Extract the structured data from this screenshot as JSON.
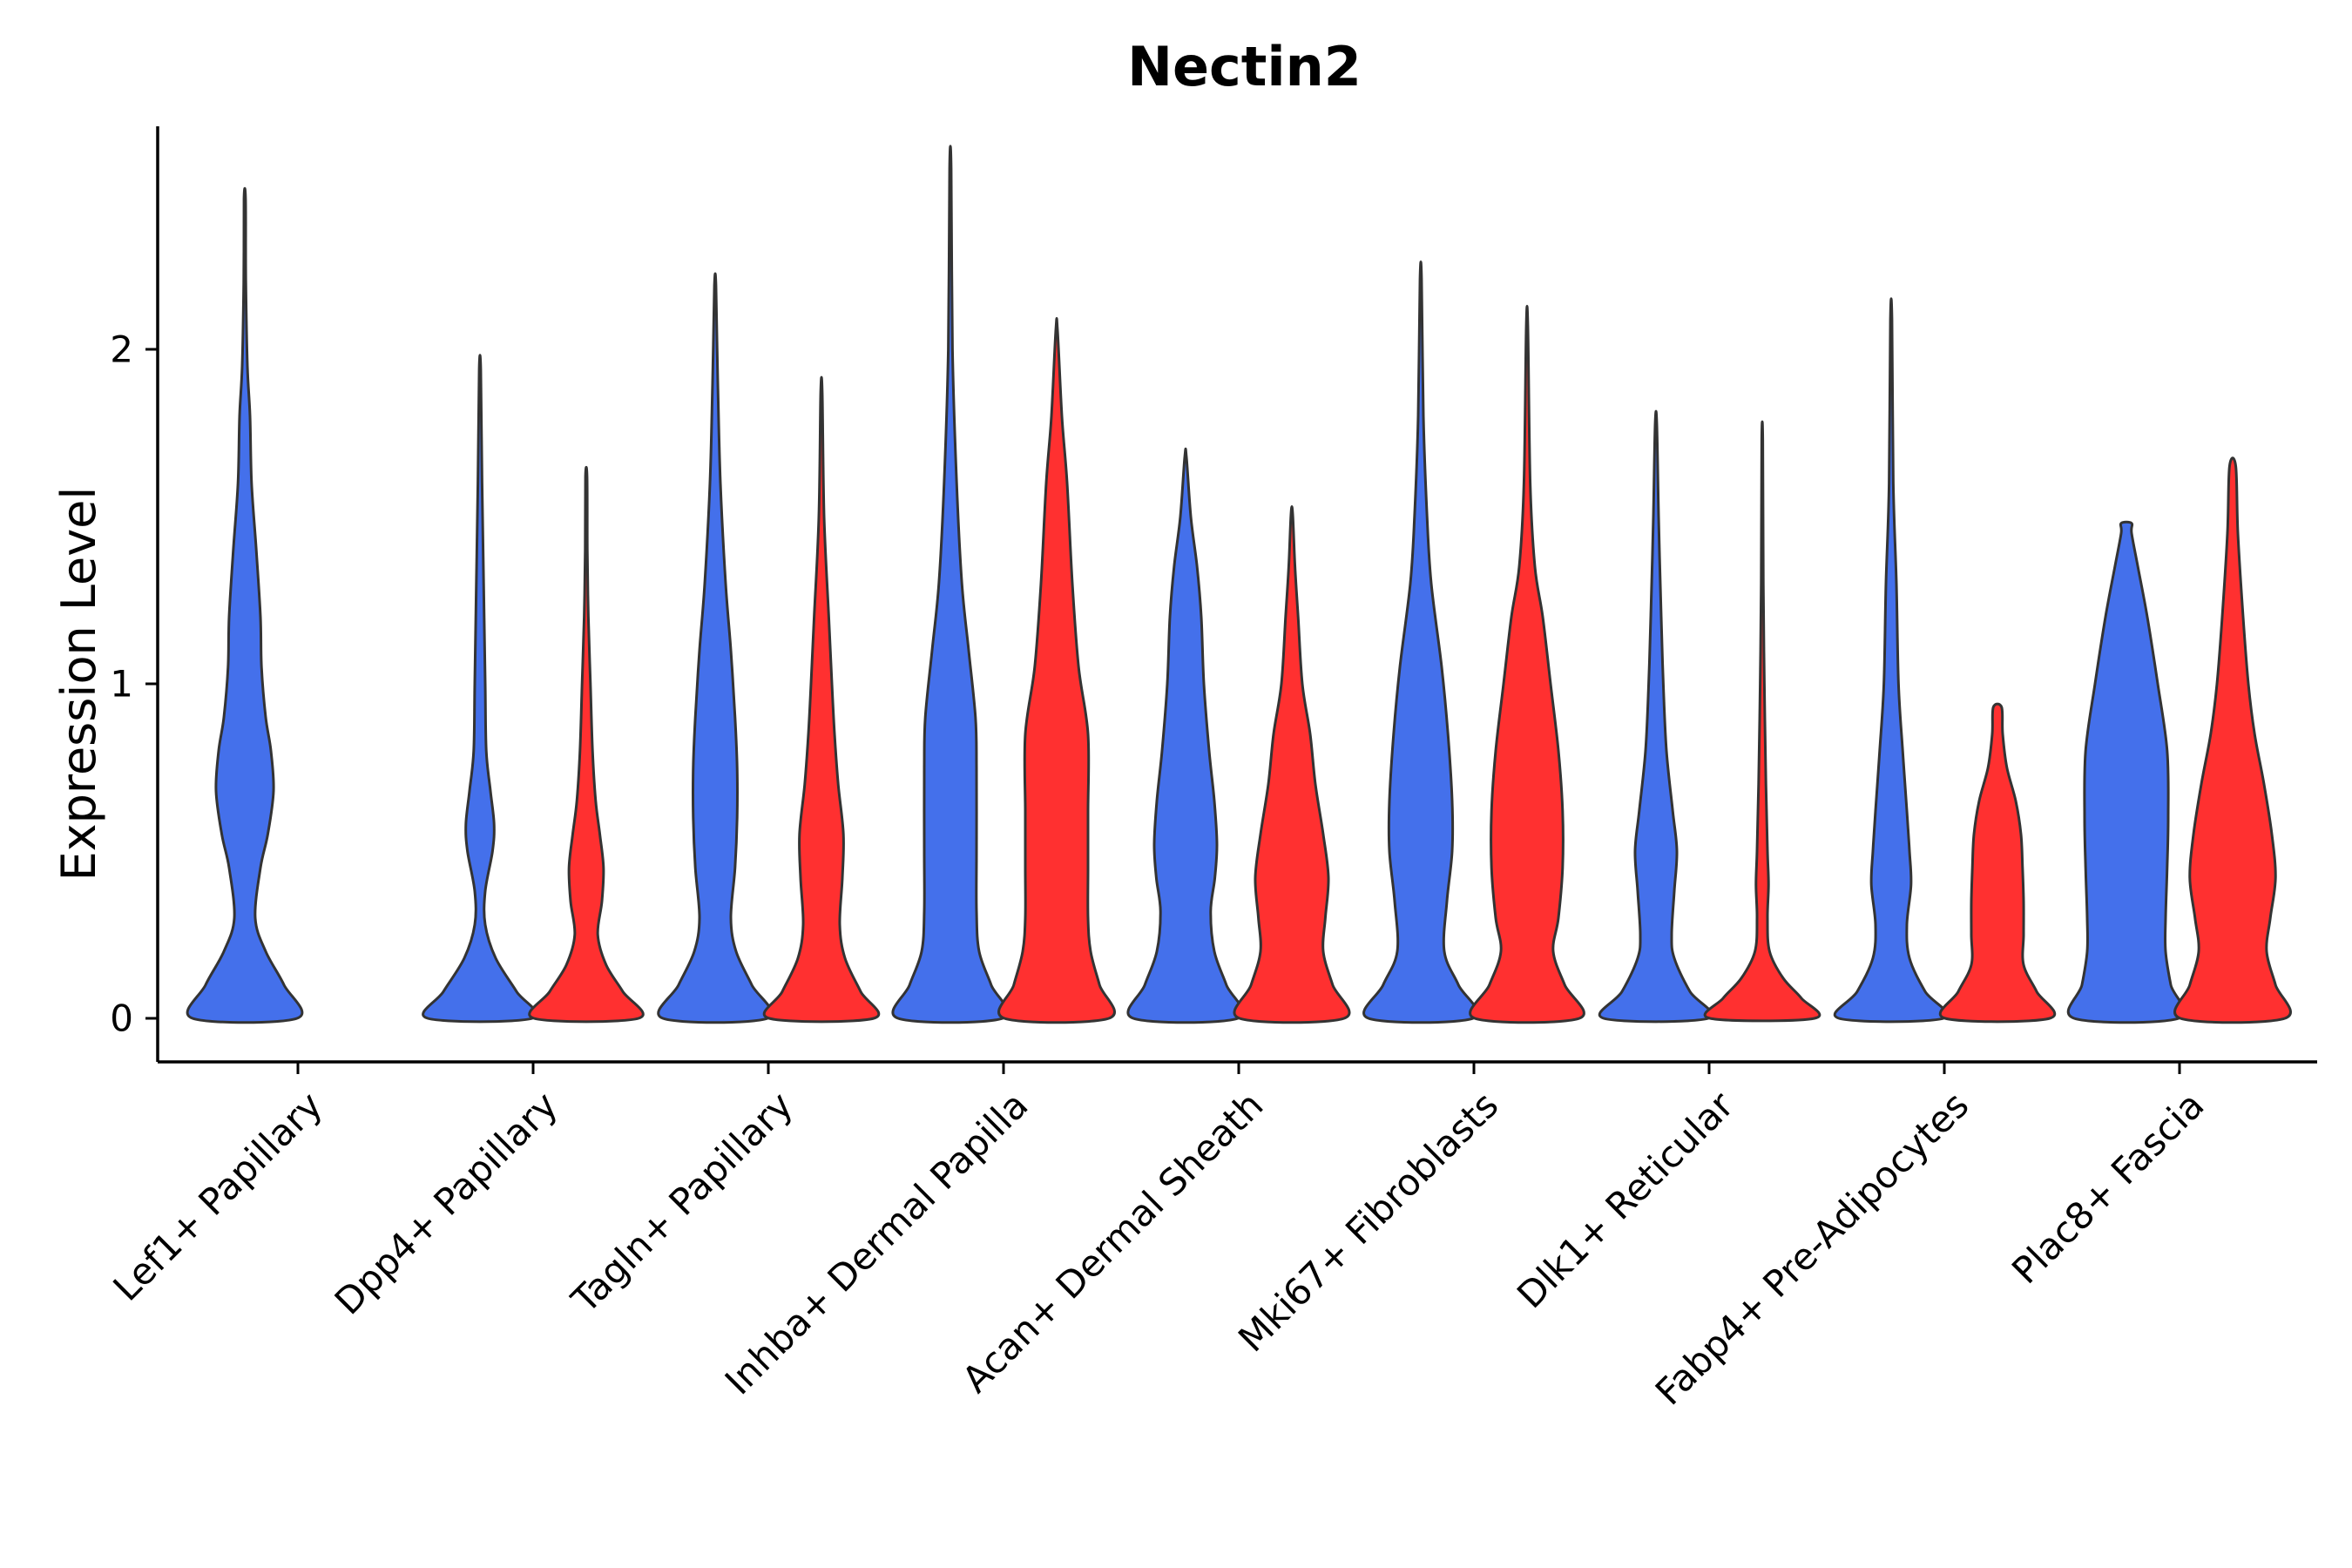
{
  "chart_data": {
    "type": "violin",
    "title": "Nectin2",
    "xlabel": "",
    "ylabel": "Expression Level",
    "ylim": [
      -0.13,
      2.68
    ],
    "yticks": [
      0,
      1,
      2
    ],
    "legend": "none",
    "categories": [
      "Lef1+ Papillary",
      "Dpp4+ Papillary",
      "Tagln+ Papillary",
      "Inhba+ Dermal Papilla",
      "Acan+ Dermal Sheath",
      "Mki67+ Fibroblasts",
      "Dlk1+ Reticular",
      "Fabp4+ Pre-Adipocytes",
      "Plac8+ Fascia"
    ],
    "series_colors": [
      "#4470eb",
      "#ff3030"
    ],
    "violins": [
      {
        "category": 0,
        "group": 0,
        "max": 2.45,
        "profile": [
          [
            0,
            1.0
          ],
          [
            0.1,
            0.75
          ],
          [
            0.2,
            0.4
          ],
          [
            0.3,
            0.2
          ],
          [
            0.45,
            0.3
          ],
          [
            0.55,
            0.44
          ],
          [
            0.68,
            0.55
          ],
          [
            0.8,
            0.5
          ],
          [
            0.9,
            0.4
          ],
          [
            1.05,
            0.32
          ],
          [
            1.2,
            0.3
          ],
          [
            1.4,
            0.22
          ],
          [
            1.6,
            0.13
          ],
          [
            1.8,
            0.1
          ],
          [
            1.95,
            0.05
          ],
          [
            2.2,
            0.02
          ],
          [
            2.45,
            0.015
          ]
        ]
      },
      {
        "category": 1,
        "group": 0,
        "max": 1.94,
        "profile": [
          [
            0,
            1.0
          ],
          [
            0.08,
            0.7
          ],
          [
            0.18,
            0.3
          ],
          [
            0.28,
            0.1
          ],
          [
            0.38,
            0.1
          ],
          [
            0.5,
            0.24
          ],
          [
            0.58,
            0.27
          ],
          [
            0.68,
            0.2
          ],
          [
            0.8,
            0.12
          ],
          [
            1.0,
            0.1
          ],
          [
            1.3,
            0.07
          ],
          [
            1.6,
            0.04
          ],
          [
            1.94,
            0.015
          ]
        ]
      },
      {
        "category": 1,
        "group": 1,
        "max": 1.62,
        "profile": [
          [
            0,
            1.0
          ],
          [
            0.08,
            0.7
          ],
          [
            0.16,
            0.38
          ],
          [
            0.25,
            0.22
          ],
          [
            0.35,
            0.3
          ],
          [
            0.45,
            0.33
          ],
          [
            0.55,
            0.26
          ],
          [
            0.65,
            0.18
          ],
          [
            0.8,
            0.12
          ],
          [
            1.0,
            0.08
          ],
          [
            1.2,
            0.04
          ],
          [
            1.4,
            0.02
          ],
          [
            1.62,
            0.015
          ]
        ]
      },
      {
        "category": 2,
        "group": 0,
        "max": 2.19,
        "profile": [
          [
            0,
            1.0
          ],
          [
            0.1,
            0.7
          ],
          [
            0.2,
            0.4
          ],
          [
            0.3,
            0.3
          ],
          [
            0.45,
            0.38
          ],
          [
            0.6,
            0.42
          ],
          [
            0.75,
            0.42
          ],
          [
            0.9,
            0.38
          ],
          [
            1.1,
            0.3
          ],
          [
            1.3,
            0.2
          ],
          [
            1.6,
            0.1
          ],
          [
            1.9,
            0.05
          ],
          [
            2.19,
            0.015
          ]
        ]
      },
      {
        "category": 2,
        "group": 1,
        "max": 1.87,
        "profile": [
          [
            0,
            1.0
          ],
          [
            0.08,
            0.75
          ],
          [
            0.18,
            0.45
          ],
          [
            0.28,
            0.35
          ],
          [
            0.42,
            0.4
          ],
          [
            0.55,
            0.42
          ],
          [
            0.7,
            0.32
          ],
          [
            0.85,
            0.25
          ],
          [
            1.0,
            0.2
          ],
          [
            1.2,
            0.14
          ],
          [
            1.5,
            0.05
          ],
          [
            1.87,
            0.015
          ]
        ]
      },
      {
        "category": 3,
        "group": 0,
        "max": 2.54,
        "profile": [
          [
            0,
            1.0
          ],
          [
            0.1,
            0.78
          ],
          [
            0.2,
            0.55
          ],
          [
            0.32,
            0.5
          ],
          [
            0.5,
            0.5
          ],
          [
            0.75,
            0.5
          ],
          [
            0.9,
            0.48
          ],
          [
            1.1,
            0.35
          ],
          [
            1.3,
            0.22
          ],
          [
            1.6,
            0.12
          ],
          [
            2.0,
            0.04
          ],
          [
            2.54,
            0.015
          ]
        ]
      },
      {
        "category": 3,
        "group": 1,
        "max": 2.06,
        "profile": [
          [
            0,
            1.0
          ],
          [
            0.1,
            0.82
          ],
          [
            0.2,
            0.65
          ],
          [
            0.3,
            0.6
          ],
          [
            0.45,
            0.6
          ],
          [
            0.62,
            0.6
          ],
          [
            0.85,
            0.6
          ],
          [
            1.05,
            0.42
          ],
          [
            1.3,
            0.3
          ],
          [
            1.6,
            0.2
          ],
          [
            1.8,
            0.1
          ],
          [
            2.06,
            0.015
          ]
        ]
      },
      {
        "category": 4,
        "group": 0,
        "max": 1.68,
        "profile": [
          [
            0,
            1.0
          ],
          [
            0.1,
            0.78
          ],
          [
            0.2,
            0.55
          ],
          [
            0.32,
            0.48
          ],
          [
            0.42,
            0.56
          ],
          [
            0.52,
            0.6
          ],
          [
            0.65,
            0.55
          ],
          [
            0.8,
            0.45
          ],
          [
            1.0,
            0.35
          ],
          [
            1.2,
            0.3
          ],
          [
            1.35,
            0.22
          ],
          [
            1.5,
            0.1
          ],
          [
            1.68,
            0.015
          ]
        ]
      },
      {
        "category": 4,
        "group": 1,
        "max": 1.51,
        "profile": [
          [
            0,
            1.0
          ],
          [
            0.1,
            0.78
          ],
          [
            0.2,
            0.6
          ],
          [
            0.3,
            0.64
          ],
          [
            0.42,
            0.7
          ],
          [
            0.55,
            0.6
          ],
          [
            0.7,
            0.45
          ],
          [
            0.85,
            0.35
          ],
          [
            1.0,
            0.2
          ],
          [
            1.2,
            0.12
          ],
          [
            1.35,
            0.06
          ],
          [
            1.51,
            0.015
          ]
        ]
      },
      {
        "category": 5,
        "group": 0,
        "max": 2.21,
        "profile": [
          [
            0,
            1.0
          ],
          [
            0.1,
            0.72
          ],
          [
            0.2,
            0.45
          ],
          [
            0.35,
            0.5
          ],
          [
            0.5,
            0.6
          ],
          [
            0.65,
            0.6
          ],
          [
            0.85,
            0.52
          ],
          [
            1.05,
            0.4
          ],
          [
            1.3,
            0.2
          ],
          [
            1.5,
            0.12
          ],
          [
            1.8,
            0.05
          ],
          [
            2.21,
            0.015
          ]
        ]
      },
      {
        "category": 5,
        "group": 1,
        "max": 2.07,
        "profile": [
          [
            0,
            1.0
          ],
          [
            0.1,
            0.72
          ],
          [
            0.2,
            0.5
          ],
          [
            0.3,
            0.6
          ],
          [
            0.45,
            0.68
          ],
          [
            0.62,
            0.68
          ],
          [
            0.8,
            0.6
          ],
          [
            1.0,
            0.45
          ],
          [
            1.2,
            0.3
          ],
          [
            1.35,
            0.15
          ],
          [
            1.6,
            0.06
          ],
          [
            2.07,
            0.015
          ]
        ]
      },
      {
        "category": 6,
        "group": 0,
        "max": 1.78,
        "profile": [
          [
            0,
            1.0
          ],
          [
            0.08,
            0.65
          ],
          [
            0.18,
            0.35
          ],
          [
            0.25,
            0.3
          ],
          [
            0.38,
            0.35
          ],
          [
            0.5,
            0.4
          ],
          [
            0.62,
            0.32
          ],
          [
            0.8,
            0.2
          ],
          [
            1.0,
            0.14
          ],
          [
            1.2,
            0.1
          ],
          [
            1.5,
            0.05
          ],
          [
            1.78,
            0.015
          ]
        ]
      },
      {
        "category": 6,
        "group": 1,
        "max": 1.73,
        "profile": [
          [
            0,
            1.0
          ],
          [
            0.06,
            0.75
          ],
          [
            0.12,
            0.4
          ],
          [
            0.2,
            0.14
          ],
          [
            0.3,
            0.1
          ],
          [
            0.4,
            0.12
          ],
          [
            0.5,
            0.1
          ],
          [
            0.7,
            0.07
          ],
          [
            1.0,
            0.04
          ],
          [
            1.3,
            0.02
          ],
          [
            1.73,
            0.01
          ]
        ]
      },
      {
        "category": 7,
        "group": 0,
        "max": 2.09,
        "profile": [
          [
            0,
            1.0
          ],
          [
            0.08,
            0.65
          ],
          [
            0.18,
            0.35
          ],
          [
            0.28,
            0.3
          ],
          [
            0.4,
            0.38
          ],
          [
            0.5,
            0.35
          ],
          [
            0.62,
            0.3
          ],
          [
            0.8,
            0.22
          ],
          [
            1.0,
            0.14
          ],
          [
            1.3,
            0.1
          ],
          [
            1.6,
            0.04
          ],
          [
            2.09,
            0.015
          ]
        ]
      },
      {
        "category": 7,
        "group": 1,
        "max": 0.93,
        "profile": [
          [
            0,
            1.0
          ],
          [
            0.08,
            0.75
          ],
          [
            0.16,
            0.5
          ],
          [
            0.25,
            0.5
          ],
          [
            0.35,
            0.5
          ],
          [
            0.45,
            0.48
          ],
          [
            0.55,
            0.45
          ],
          [
            0.65,
            0.35
          ],
          [
            0.75,
            0.18
          ],
          [
            0.85,
            0.1
          ],
          [
            0.93,
            0.08
          ]
        ]
      },
      {
        "category": 8,
        "group": 0,
        "max": 1.48,
        "profile": [
          [
            0,
            1.0
          ],
          [
            0.1,
            0.85
          ],
          [
            0.2,
            0.75
          ],
          [
            0.3,
            0.75
          ],
          [
            0.45,
            0.78
          ],
          [
            0.6,
            0.8
          ],
          [
            0.8,
            0.78
          ],
          [
            1.0,
            0.6
          ],
          [
            1.2,
            0.4
          ],
          [
            1.35,
            0.22
          ],
          [
            1.45,
            0.1
          ],
          [
            1.48,
            0.1
          ]
        ]
      },
      {
        "category": 8,
        "group": 1,
        "max": 1.65,
        "profile": [
          [
            0,
            1.0
          ],
          [
            0.1,
            0.82
          ],
          [
            0.2,
            0.65
          ],
          [
            0.3,
            0.72
          ],
          [
            0.42,
            0.82
          ],
          [
            0.55,
            0.75
          ],
          [
            0.7,
            0.6
          ],
          [
            0.85,
            0.42
          ],
          [
            1.0,
            0.3
          ],
          [
            1.2,
            0.2
          ],
          [
            1.45,
            0.1
          ],
          [
            1.65,
            0.06
          ]
        ]
      }
    ]
  }
}
